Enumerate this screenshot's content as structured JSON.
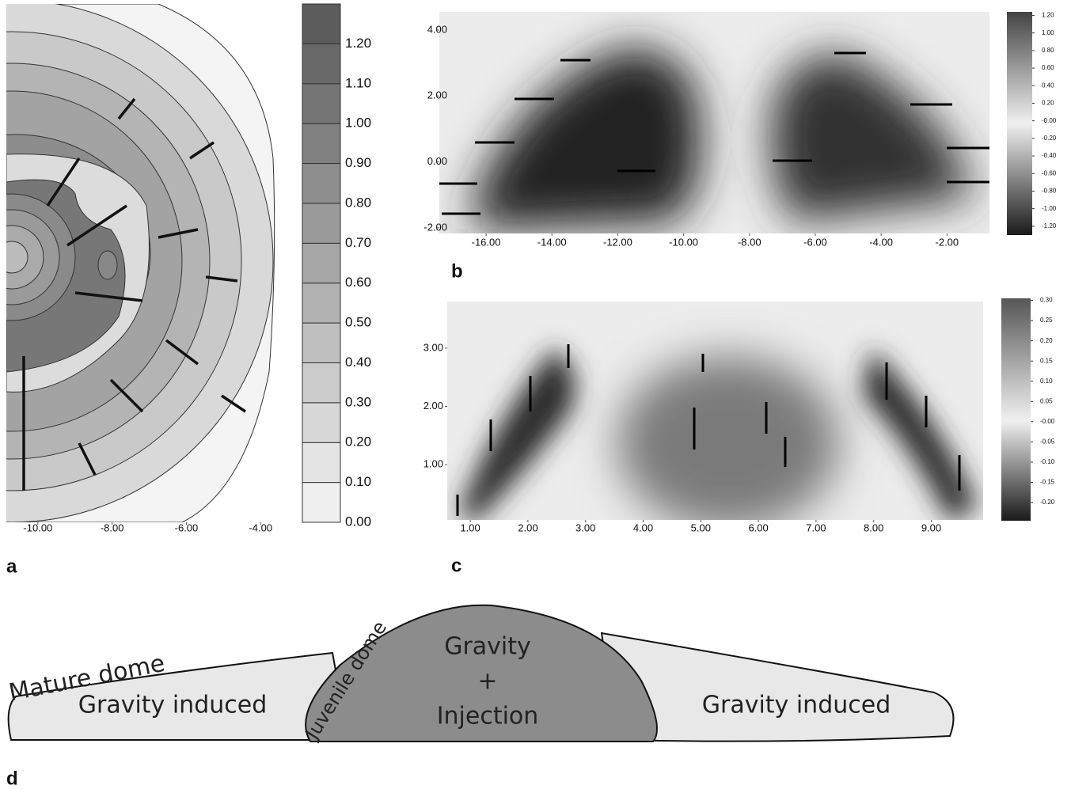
{
  "chart_data": [
    {
      "type": "contour",
      "panel": "a",
      "xlim": [
        -10.85,
        -3.6
      ],
      "xticks": [
        {
          "value": -10,
          "label": "-10.00"
        },
        {
          "value": -8,
          "label": "-8.00"
        },
        {
          "value": -6,
          "label": "-6.00"
        },
        {
          "value": -4,
          "label": "-4.00"
        }
      ],
      "colorbar": {
        "lim": [
          0,
          1.3
        ],
        "ticks": [
          {
            "value": 0,
            "label": "0.00"
          },
          {
            "value": 0.1,
            "label": "0.10"
          },
          {
            "value": 0.2,
            "label": "0.20"
          },
          {
            "value": 0.3,
            "label": "0.30"
          },
          {
            "value": 0.4,
            "label": "0.40"
          },
          {
            "value": 0.5,
            "label": "0.50"
          },
          {
            "value": 0.6,
            "label": "0.60"
          },
          {
            "value": 0.7,
            "label": "0.70"
          },
          {
            "value": 0.8,
            "label": "0.80"
          },
          {
            "value": 0.9,
            "label": "0.90"
          },
          {
            "value": 1,
            "label": "1.00"
          },
          {
            "value": 1.1,
            "label": "1.10"
          },
          {
            "value": 1.2,
            "label": "1.20"
          }
        ]
      }
    },
    {
      "type": "heatmap",
      "panel": "b",
      "xlim": [
        -17.42,
        -0.71
      ],
      "xticks": [
        {
          "value": -16,
          "label": "-16.00"
        },
        {
          "value": -14,
          "label": "-14.00"
        },
        {
          "value": -12,
          "label": "-12.00"
        },
        {
          "value": -10,
          "label": "-10.00"
        },
        {
          "value": -8,
          "label": "-8.00"
        },
        {
          "value": -6,
          "label": "-6.00"
        },
        {
          "value": -4,
          "label": "-4.00"
        },
        {
          "value": -2,
          "label": "-2.00"
        }
      ],
      "ylim": [
        -2.17,
        4.55
      ],
      "yticks": [
        {
          "value": -2,
          "label": "-2.00"
        },
        {
          "value": 0,
          "label": "0.00"
        },
        {
          "value": 2,
          "label": "2.00"
        },
        {
          "value": 4,
          "label": "4.00"
        }
      ],
      "colorbar": {
        "lim": [
          -1.3,
          1.24
        ],
        "ticks": [
          {
            "value": 1.2,
            "label": "1.20"
          },
          {
            "value": 1,
            "label": "1.00"
          },
          {
            "value": 0.8,
            "label": "0.80"
          },
          {
            "value": 0.6,
            "label": "0.60"
          },
          {
            "value": 0.4,
            "label": "0.40"
          },
          {
            "value": 0.2,
            "label": "0.20"
          },
          {
            "value": 0,
            "label": "-0.00"
          },
          {
            "value": -0.2,
            "label": "-0.20"
          },
          {
            "value": -0.4,
            "label": "-0.40"
          },
          {
            "value": -0.6,
            "label": "-0.60"
          },
          {
            "value": -0.8,
            "label": "-0.80"
          },
          {
            "value": -1,
            "label": "-1.00"
          },
          {
            "value": -1.2,
            "label": "-1.20"
          }
        ]
      }
    },
    {
      "type": "heatmap",
      "panel": "c",
      "xlim": [
        0.6,
        9.9
      ],
      "xticks": [
        {
          "value": 1,
          "label": "1.00"
        },
        {
          "value": 2,
          "label": "2.00"
        },
        {
          "value": 3,
          "label": "3.00"
        },
        {
          "value": 4,
          "label": "4.00"
        },
        {
          "value": 5,
          "label": "5.00"
        },
        {
          "value": 6,
          "label": "6.00"
        },
        {
          "value": 7,
          "label": "7.00"
        },
        {
          "value": 8,
          "label": "8.00"
        },
        {
          "value": 9,
          "label": "9.00"
        }
      ],
      "ylim": [
        0.05,
        3.8
      ],
      "yticks": [
        {
          "value": 1,
          "label": "1.00"
        },
        {
          "value": 2,
          "label": "2.00"
        },
        {
          "value": 3,
          "label": "3.00"
        }
      ],
      "colorbar": {
        "lim": [
          -0.245,
          0.305
        ],
        "ticks": [
          {
            "value": 0.3,
            "label": "0.30"
          },
          {
            "value": 0.25,
            "label": "0.25"
          },
          {
            "value": 0.2,
            "label": "0.20"
          },
          {
            "value": 0.15,
            "label": "0.15"
          },
          {
            "value": 0.1,
            "label": "0.10"
          },
          {
            "value": 0.05,
            "label": "0.05"
          },
          {
            "value": 0,
            "label": "-0.00"
          },
          {
            "value": -0.05,
            "label": "-0.05"
          },
          {
            "value": -0.1,
            "label": "-0.10"
          },
          {
            "value": -0.15,
            "label": "-0.15"
          },
          {
            "value": -0.2,
            "label": "-0.20"
          }
        ]
      }
    }
  ],
  "diagram": {
    "panel": "d",
    "mature_label": "Mature dome",
    "juvenile_label": "Juvenile dome",
    "left_text": "Gravity induced",
    "center_lines": [
      "Gravity",
      "+",
      "Injection"
    ],
    "right_text": "Gravity induced"
  }
}
